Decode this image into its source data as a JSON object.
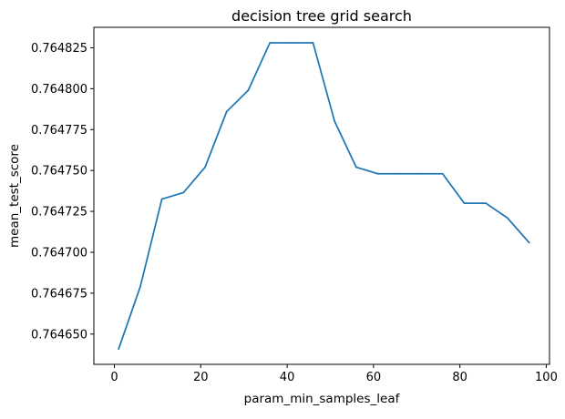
{
  "chart_data": {
    "type": "line",
    "title": "decision tree grid search",
    "xlabel": "param_min_samples_leaf",
    "ylabel": "mean_test_score",
    "xlim": [
      -4.75,
      100.75
    ],
    "ylim": [
      0.7646315,
      0.7648375
    ],
    "xticks": [
      0,
      20,
      40,
      60,
      80,
      100
    ],
    "xtick_labels": [
      "0",
      "20",
      "40",
      "60",
      "80",
      "100"
    ],
    "yticks": [
      0.76465,
      0.764675,
      0.7647,
      0.764725,
      0.76475,
      0.764775,
      0.7648,
      0.764825
    ],
    "ytick_labels": [
      "0.764650",
      "0.764675",
      "0.764700",
      "0.764725",
      "0.764750",
      "0.764775",
      "0.764800",
      "0.764825"
    ],
    "grid": false,
    "line_color": "#1f77b4",
    "series": [
      {
        "x": [
          1,
          6,
          11,
          16,
          21,
          26,
          31,
          36,
          41,
          46,
          51,
          56,
          61,
          66,
          71,
          76,
          81,
          86,
          91,
          96
        ],
        "values": [
          0.764641,
          0.764679,
          0.7647325,
          0.7647365,
          0.764752,
          0.764786,
          0.764799,
          0.764828,
          0.764828,
          0.764828,
          0.76478,
          0.764752,
          0.764748,
          0.764748,
          0.764748,
          0.764748,
          0.76473,
          0.76473,
          0.764721,
          0.764706
        ]
      }
    ]
  }
}
